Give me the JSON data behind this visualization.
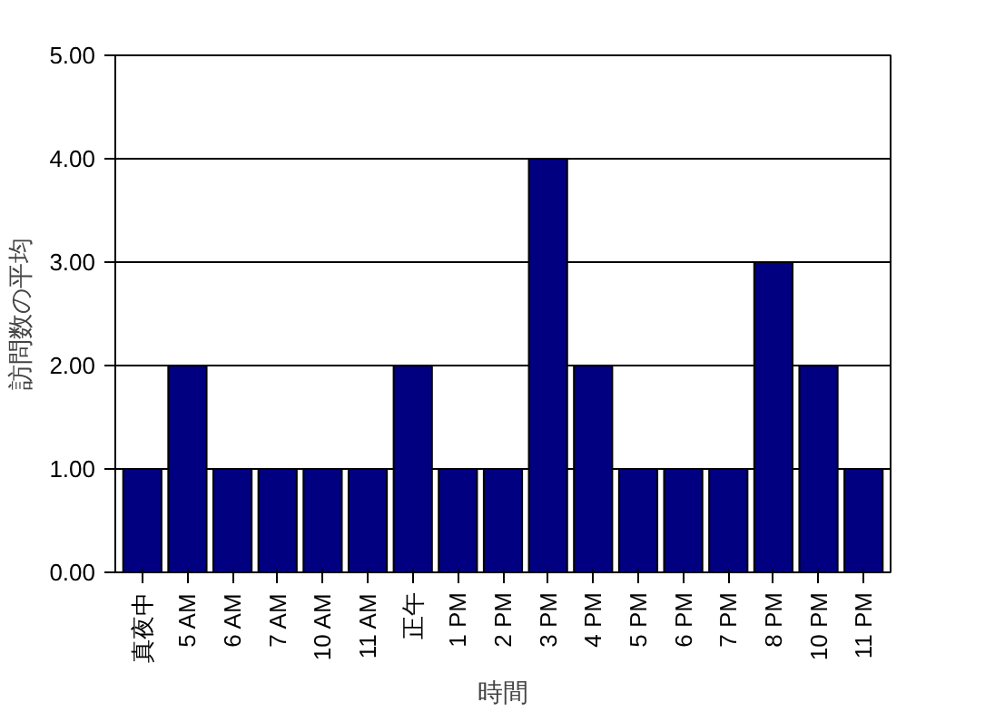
{
  "chart_data": {
    "type": "bar",
    "xlabel": "時間",
    "ylabel": "訪問数の平均",
    "categories": [
      "真夜中",
      "5 AM",
      "6 AM",
      "7 AM",
      "10 AM",
      "11 AM",
      "正午",
      "1 PM",
      "2 PM",
      "3 PM",
      "4 PM",
      "5 PM",
      "6 PM",
      "7 PM",
      "8 PM",
      "10 PM",
      "11 PM"
    ],
    "values": [
      1,
      2,
      1,
      1,
      1,
      1,
      2,
      1,
      1,
      4,
      2,
      1,
      1,
      1,
      3,
      2,
      1
    ],
    "color": "#000080",
    "ylim": [
      0,
      5
    ],
    "yticks": [
      {
        "value": 0,
        "label": "0.00"
      },
      {
        "value": 1,
        "label": "1.00"
      },
      {
        "value": 2,
        "label": "2.00"
      },
      {
        "value": 3,
        "label": "3.00"
      },
      {
        "value": 4,
        "label": "4.00"
      },
      {
        "value": 5,
        "label": "5.00"
      }
    ],
    "grid": "y"
  }
}
